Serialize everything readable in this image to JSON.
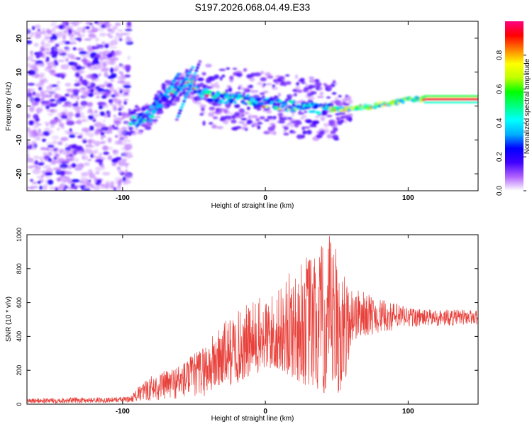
{
  "page_title": "S197.2026.068.04.49.E33",
  "chart_data": [
    {
      "type": "heatmap",
      "title": "S197.2026.068.04.49.E33",
      "xlabel": "Height of straight line (km)",
      "ylabel": "Frequency (Hz)",
      "xlim": [
        -167,
        149
      ],
      "ylim": [
        -25,
        25
      ],
      "x_ticks": [
        -100,
        0,
        100
      ],
      "y_ticks": [
        -20,
        -10,
        0,
        10,
        20
      ],
      "grid": false,
      "colorbar": {
        "label": "Normalized spectral amplitude",
        "range": [
          0,
          1
        ],
        "ticks": [
          0.0,
          0.2,
          0.4,
          0.6,
          0.8
        ],
        "tick_labels": [
          "0.0",
          "0.2",
          "0.4",
          "0.6",
          "0.8"
        ],
        "colors": [
          "#ffffff",
          "#b060ff",
          "#4000ff",
          "#0000ff",
          "#00b0ff",
          "#00ffff",
          "#00ff80",
          "#00ff00",
          "#c0ff00",
          "#ffff00",
          "#ff8000",
          "#ff0000",
          "#ff0080"
        ]
      },
      "features": [
        {
          "name": "noise-region",
          "x_range": [
            -167,
            -95
          ],
          "description_values": {
            "f_range": [
              -25,
              25
            ]
          }
        },
        {
          "name": "main-trace",
          "points": [
            [
              -95,
              -4.5
            ],
            [
              -88,
              -4
            ],
            [
              -80,
              -3
            ],
            [
              -70,
              3
            ],
            [
              -55,
              7
            ],
            [
              -40,
              3
            ],
            [
              -20,
              2
            ],
            [
              0,
              1
            ],
            [
              20,
              0
            ],
            [
              40,
              -1
            ],
            [
              55,
              -1
            ],
            [
              75,
              0
            ],
            [
              90,
              1
            ],
            [
              100,
              2
            ],
            [
              115,
              2
            ],
            [
              149,
              2
            ]
          ]
        }
      ]
    },
    {
      "type": "line",
      "xlabel": "Height of straight line (km)",
      "ylabel": "SNR (10 * v/v)",
      "xlim": [
        -167,
        149
      ],
      "ylim": [
        0,
        1000
      ],
      "x_ticks": [
        -100,
        0,
        100
      ],
      "y_ticks": [
        0,
        200,
        400,
        600,
        800,
        1000
      ],
      "line_color": "#e8403a",
      "envelope": {
        "x": [
          -167,
          -140,
          -110,
          -95,
          -88,
          -80,
          -70,
          -60,
          -50,
          -40,
          -30,
          -20,
          -10,
          0,
          10,
          20,
          30,
          40,
          45,
          50,
          55,
          60,
          70,
          80,
          90,
          100,
          110,
          120,
          130,
          140,
          149
        ],
        "low": [
          5,
          5,
          10,
          12,
          15,
          20,
          25,
          30,
          40,
          50,
          80,
          120,
          160,
          200,
          200,
          150,
          100,
          50,
          30,
          50,
          80,
          350,
          400,
          420,
          430,
          450,
          460,
          460,
          460,
          470,
          470
        ],
        "high": [
          35,
          40,
          40,
          45,
          110,
          170,
          200,
          240,
          300,
          380,
          480,
          550,
          610,
          640,
          680,
          820,
          900,
          950,
          1000,
          950,
          780,
          700,
          660,
          620,
          600,
          580,
          560,
          560,
          560,
          560,
          560
        ]
      }
    }
  ]
}
